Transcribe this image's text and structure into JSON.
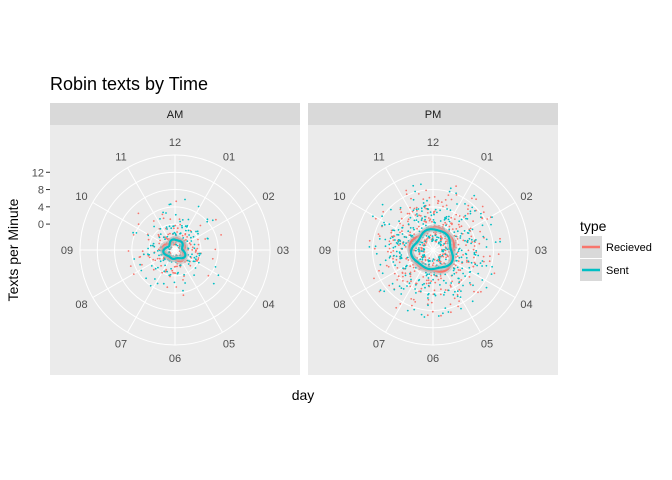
{
  "chart_data": {
    "type": "scatter",
    "coord": "polar",
    "title": "Robin texts by Time",
    "xlabel": "day",
    "ylabel": "Texts per Minute",
    "theme": {
      "panel_bg": "#ebebeb",
      "strip_bg": "#d9d9d9",
      "grid": "#ffffff",
      "grid_on": true
    },
    "y_ticks": [
      "0",
      "4",
      "8",
      "12"
    ],
    "y_tick_values": [
      0,
      4,
      8,
      12
    ],
    "ylim": [
      -6,
      16
    ],
    "hour_labels": [
      "12",
      "01",
      "02",
      "03",
      "04",
      "05",
      "06",
      "07",
      "08",
      "09",
      "10",
      "11"
    ],
    "legend": {
      "title": "type",
      "position": "right",
      "items": [
        {
          "label": "Recieved",
          "color": "#F8766D"
        },
        {
          "label": "Sent",
          "color": "#00BFC4"
        }
      ]
    },
    "facets": [
      {
        "label": "AM",
        "avg_line_level": {
          "Recieved": -3.6,
          "Sent": -3.8
        },
        "scatter_spread": {
          "core_min": -5,
          "core_max": 0,
          "tail_max": 6,
          "count_per_series": 170
        }
      },
      {
        "label": "PM",
        "avg_line_level": {
          "Recieved": -1.0,
          "Sent": -1.4
        },
        "scatter_spread": {
          "core_min": -4,
          "core_max": 4,
          "tail_max": 10,
          "count_per_series": 420
        }
      }
    ]
  }
}
